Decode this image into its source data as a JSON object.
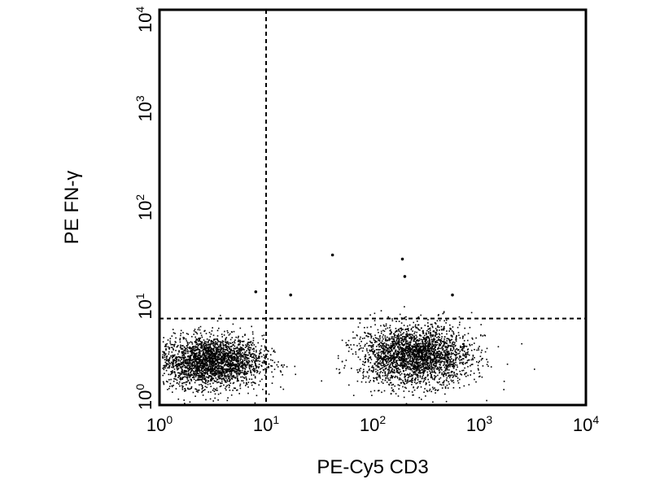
{
  "chart_data": {
    "type": "scatter",
    "xlabel": "PE-Cy5 CD3",
    "ylabel": "PE FN-γ",
    "x_scale": "log",
    "y_scale": "log",
    "xlim": [
      1,
      10000
    ],
    "ylim": [
      1,
      10000
    ],
    "grid": false,
    "x_ticks": [
      {
        "base": "10",
        "exp": "0"
      },
      {
        "base": "10",
        "exp": "1"
      },
      {
        "base": "10",
        "exp": "2"
      },
      {
        "base": "10",
        "exp": "3"
      },
      {
        "base": "10",
        "exp": "4"
      }
    ],
    "y_ticks": [
      {
        "base": "10",
        "exp": "0"
      },
      {
        "base": "10",
        "exp": "1"
      },
      {
        "base": "10",
        "exp": "2"
      },
      {
        "base": "10",
        "exp": "3"
      },
      {
        "base": "10",
        "exp": "4"
      }
    ],
    "quadrant_gates": {
      "x": 10,
      "y": 7.5
    },
    "populations": [
      {
        "center_x": 3,
        "center_y": 2.8,
        "spread_log_x": 0.24,
        "spread_log_y": 0.13,
        "density": "high"
      },
      {
        "center_x": 250,
        "center_y": 3.2,
        "spread_log_x": 0.26,
        "spread_log_y": 0.15,
        "density": "high"
      }
    ],
    "outlier_points": [
      {
        "x": 42,
        "y": 33
      },
      {
        "x": 190,
        "y": 30
      },
      {
        "x": 200,
        "y": 20
      },
      {
        "x": 17,
        "y": 13
      },
      {
        "x": 8,
        "y": 14
      },
      {
        "x": 560,
        "y": 13
      }
    ],
    "colors": {
      "points": "#000000",
      "axes": "#000000",
      "background": "#ffffff"
    }
  }
}
